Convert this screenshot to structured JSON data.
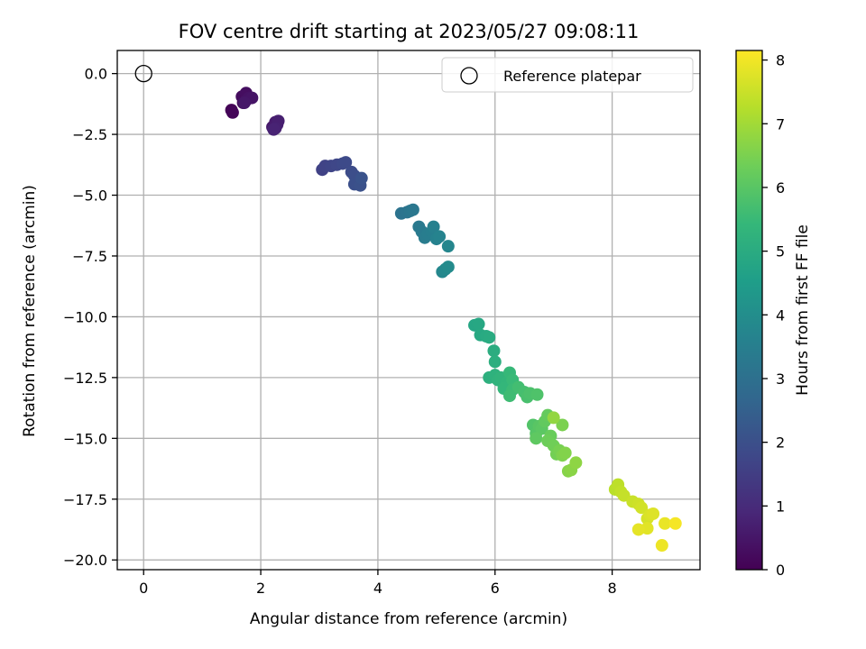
{
  "chart_data": {
    "type": "scatter",
    "title": "FOV centre drift starting at 2023/05/27 09:08:11",
    "xlabel": "Angular distance from reference (arcmin)",
    "ylabel": "Rotation from reference (arcmin)",
    "xlim": [
      -0.45,
      9.5
    ],
    "ylim": [
      -20.4,
      0.95
    ],
    "grid": true,
    "xticks": [
      0,
      2,
      4,
      6,
      8
    ],
    "xtick_labels": [
      "0",
      "2",
      "4",
      "6",
      "8"
    ],
    "yticks": [
      0.0,
      -2.5,
      -5.0,
      -7.5,
      -10.0,
      -12.5,
      -15.0,
      -17.5,
      -20.0
    ],
    "ytick_labels": [
      "0.0",
      "−2.5",
      "−5.0",
      "−7.5",
      "−10.0",
      "−12.5",
      "−15.0",
      "−17.5",
      "−20.0"
    ],
    "legend": {
      "placement": "upper right",
      "entries": [
        {
          "label": "Reference platepar",
          "marker": "open-circle"
        }
      ]
    },
    "reference_point": {
      "label": "Reference platepar",
      "x": 0.0,
      "y": 0.0
    },
    "colorbar": {
      "label": "Hours from first FF file",
      "colormap": "viridis",
      "range": [
        0,
        8.15
      ],
      "ticks": [
        0,
        1,
        2,
        3,
        4,
        5,
        6,
        7,
        8
      ],
      "tick_labels": [
        "0",
        "1",
        "2",
        "3",
        "4",
        "5",
        "6",
        "7",
        "8"
      ]
    },
    "viridis_stops": [
      "#440154",
      "#482878",
      "#3e4989",
      "#31688e",
      "#26828e",
      "#1f9e89",
      "#35b779",
      "#6ece58",
      "#b5de2b",
      "#fde725"
    ],
    "series": [
      {
        "points": [
          [
            1.5,
            -1.5,
            0.05
          ],
          [
            1.52,
            -1.6,
            0.1
          ],
          [
            1.7,
            -1.2,
            0.2
          ],
          [
            1.68,
            -0.95,
            0.25
          ],
          [
            1.75,
            -0.8,
            0.3
          ],
          [
            1.75,
            -1.1,
            0.35
          ],
          [
            1.8,
            -1.0,
            0.4
          ],
          [
            1.85,
            -1.0,
            0.45
          ],
          [
            1.72,
            -1.2,
            0.5
          ],
          [
            2.2,
            -2.2,
            0.55
          ],
          [
            2.25,
            -2.0,
            0.6
          ],
          [
            2.28,
            -2.1,
            0.65
          ],
          [
            2.3,
            -1.95,
            0.7
          ],
          [
            2.25,
            -2.25,
            0.75
          ],
          [
            2.22,
            -2.3,
            0.8
          ],
          [
            3.05,
            -3.95,
            1.6
          ],
          [
            3.1,
            -3.8,
            1.65
          ],
          [
            3.2,
            -3.8,
            1.7
          ],
          [
            3.3,
            -3.75,
            1.75
          ],
          [
            3.4,
            -3.7,
            1.8
          ],
          [
            3.45,
            -3.65,
            1.85
          ],
          [
            3.55,
            -4.05,
            1.9
          ],
          [
            3.6,
            -4.2,
            1.95
          ],
          [
            3.6,
            -4.55,
            2.0
          ],
          [
            3.7,
            -4.6,
            2.05
          ],
          [
            3.72,
            -4.3,
            2.1
          ],
          [
            4.4,
            -5.75,
            3.1
          ],
          [
            4.5,
            -5.7,
            3.15
          ],
          [
            4.55,
            -5.65,
            3.2
          ],
          [
            4.6,
            -5.6,
            3.25
          ],
          [
            4.7,
            -6.3,
            3.3
          ],
          [
            4.75,
            -6.5,
            3.35
          ],
          [
            4.8,
            -6.75,
            3.4
          ],
          [
            4.85,
            -6.6,
            3.45
          ],
          [
            4.92,
            -6.5,
            3.5
          ],
          [
            4.95,
            -6.3,
            3.55
          ],
          [
            5.0,
            -6.8,
            3.6
          ],
          [
            5.05,
            -6.7,
            3.65
          ],
          [
            5.2,
            -7.1,
            3.75
          ],
          [
            5.1,
            -8.15,
            3.8
          ],
          [
            5.15,
            -8.05,
            3.85
          ],
          [
            5.2,
            -7.95,
            3.9
          ],
          [
            5.65,
            -10.35,
            4.8
          ],
          [
            5.72,
            -10.3,
            4.85
          ],
          [
            5.75,
            -10.75,
            4.9
          ],
          [
            5.85,
            -10.8,
            4.95
          ],
          [
            5.9,
            -10.85,
            5.0
          ],
          [
            5.98,
            -11.4,
            5.05
          ],
          [
            6.0,
            -11.85,
            5.1
          ],
          [
            5.9,
            -12.5,
            5.15
          ],
          [
            6.0,
            -12.4,
            5.2
          ],
          [
            6.05,
            -12.6,
            5.25
          ],
          [
            6.1,
            -12.5,
            5.3
          ],
          [
            6.2,
            -12.7,
            5.35
          ],
          [
            6.15,
            -12.95,
            5.4
          ],
          [
            6.25,
            -12.3,
            5.45
          ],
          [
            6.3,
            -12.6,
            5.5
          ],
          [
            6.3,
            -13.0,
            5.55
          ],
          [
            6.25,
            -13.25,
            5.6
          ],
          [
            6.4,
            -12.9,
            5.65
          ],
          [
            6.5,
            -13.1,
            5.7
          ],
          [
            6.55,
            -13.3,
            5.75
          ],
          [
            6.6,
            -13.15,
            5.8
          ],
          [
            6.72,
            -13.2,
            5.85
          ],
          [
            6.65,
            -14.45,
            5.9
          ],
          [
            6.7,
            -14.8,
            5.95
          ],
          [
            6.75,
            -14.5,
            6.0
          ],
          [
            6.8,
            -14.6,
            6.05
          ],
          [
            6.7,
            -15.0,
            6.1
          ],
          [
            6.85,
            -14.3,
            6.15
          ],
          [
            6.9,
            -14.05,
            6.2
          ],
          [
            6.95,
            -14.9,
            6.25
          ],
          [
            6.9,
            -15.1,
            6.3
          ],
          [
            7.0,
            -15.3,
            6.35
          ],
          [
            7.05,
            -15.65,
            6.4
          ],
          [
            7.1,
            -15.5,
            6.45
          ],
          [
            7.15,
            -14.45,
            6.5
          ],
          [
            7.15,
            -15.7,
            6.55
          ],
          [
            7.2,
            -15.6,
            6.6
          ],
          [
            7.25,
            -16.35,
            6.65
          ],
          [
            7.3,
            -16.3,
            6.7
          ],
          [
            7.38,
            -16.0,
            6.75
          ],
          [
            7.0,
            -14.15,
            6.8
          ],
          [
            8.05,
            -17.1,
            7.3
          ],
          [
            8.1,
            -16.9,
            7.35
          ],
          [
            8.15,
            -17.2,
            7.4
          ],
          [
            8.2,
            -17.35,
            7.45
          ],
          [
            8.35,
            -17.6,
            7.5
          ],
          [
            8.45,
            -17.7,
            7.55
          ],
          [
            8.5,
            -17.85,
            7.6
          ],
          [
            8.6,
            -18.3,
            7.65
          ],
          [
            8.65,
            -18.15,
            7.7
          ],
          [
            8.7,
            -18.1,
            7.75
          ],
          [
            8.6,
            -18.7,
            7.8
          ],
          [
            8.45,
            -18.75,
            7.85
          ],
          [
            8.9,
            -18.5,
            7.9
          ],
          [
            8.85,
            -19.4,
            7.95
          ],
          [
            9.08,
            -18.5,
            8.05
          ]
        ]
      }
    ]
  }
}
